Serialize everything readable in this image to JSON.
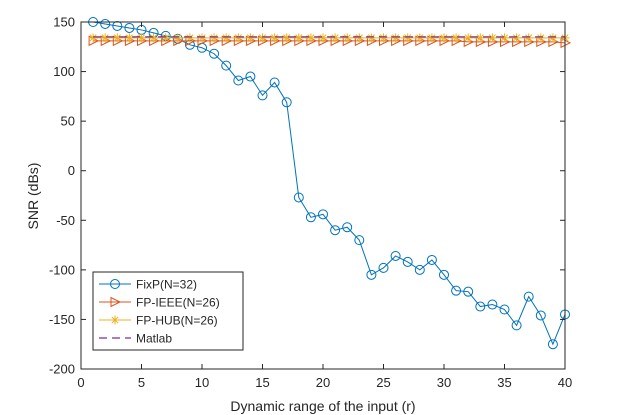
{
  "chart_data": {
    "type": "line",
    "title": "",
    "xlabel": "Dynamic range of the input (r)",
    "ylabel": "SNR (dBs)",
    "xlim": [
      0,
      40
    ],
    "ylim": [
      -200,
      150
    ],
    "xticks": [
      0,
      5,
      10,
      15,
      20,
      25,
      30,
      35,
      40
    ],
    "yticks": [
      -200,
      -150,
      -100,
      -50,
      0,
      50,
      100,
      150
    ],
    "grid": false,
    "legend_position": "bottom-left",
    "x": [
      1,
      2,
      3,
      4,
      5,
      6,
      7,
      8,
      9,
      10,
      11,
      12,
      13,
      14,
      15,
      16,
      17,
      18,
      19,
      20,
      21,
      22,
      23,
      24,
      25,
      26,
      27,
      28,
      29,
      30,
      31,
      32,
      33,
      34,
      35,
      36,
      37,
      38,
      39,
      40
    ],
    "series": [
      {
        "name": "FixP(N=32)",
        "color": "#0072BD",
        "marker": "circle",
        "linestyle": "solid",
        "values": [
          150,
          148,
          146,
          144,
          142,
          139,
          136,
          133,
          127,
          124,
          118,
          106,
          91,
          95,
          76,
          89,
          69,
          -27,
          -47,
          -44,
          -60,
          -57,
          -70,
          -105,
          -98,
          -86,
          -92,
          -100,
          -90,
          -105,
          -121,
          -122,
          -137,
          -135,
          -140,
          -156,
          -127,
          -146,
          -175,
          -145
        ]
      },
      {
        "name": "FP-IEEE(N=26)",
        "color": "#D95319",
        "marker": "triangle-right",
        "linestyle": "solid",
        "values": [
          131,
          131,
          131,
          131,
          131,
          131,
          131,
          131,
          131,
          131,
          131,
          131,
          131,
          131,
          131,
          131,
          131,
          131,
          131,
          131,
          131,
          131,
          131,
          131,
          131,
          131,
          131,
          131,
          131,
          131,
          131,
          130,
          130,
          130,
          130,
          130,
          130,
          130,
          130,
          129
        ]
      },
      {
        "name": "FP-HUB(N=26)",
        "color": "#EDB120",
        "marker": "asterisk",
        "linestyle": "solid",
        "values": [
          134,
          134,
          134,
          134,
          134,
          134,
          134,
          134,
          134,
          134,
          134,
          134,
          134,
          134,
          134,
          134,
          134,
          134,
          134,
          134,
          134,
          134,
          134,
          134,
          134,
          134,
          134,
          134,
          134,
          134,
          134,
          134,
          134,
          134,
          134,
          134,
          134,
          134,
          134,
          134
        ]
      },
      {
        "name": "Matlab",
        "color": "#7E2F8E",
        "marker": "none",
        "linestyle": "dashed",
        "values": [
          135,
          135,
          135,
          135,
          135,
          135,
          135,
          135,
          135,
          135,
          135,
          135,
          135,
          135,
          135,
          135,
          135,
          135,
          135,
          135,
          135,
          135,
          135,
          135,
          135,
          135,
          135,
          135,
          135,
          135,
          135,
          135,
          135,
          135,
          135,
          135,
          135,
          135,
          135,
          135
        ]
      }
    ]
  }
}
